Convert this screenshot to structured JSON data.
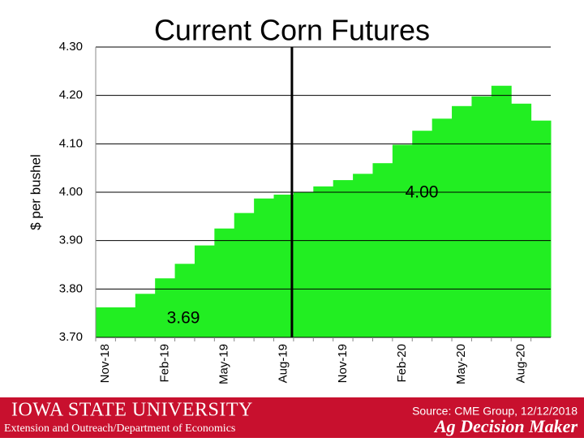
{
  "chart_data": {
    "type": "step-area",
    "title": "Current Corn Futures",
    "y_label": "$ per bushel",
    "categories": [
      "Nov-18",
      null,
      null,
      "Feb-19",
      null,
      null,
      "May-19",
      null,
      null,
      "Aug-19",
      null,
      null,
      "Nov-19",
      null,
      null,
      "Feb-20",
      null,
      null,
      "May-20",
      null,
      null,
      "Aug-20",
      null
    ],
    "values": [
      3.762,
      3.762,
      3.79,
      3.822,
      3.852,
      3.89,
      3.925,
      3.957,
      3.987,
      3.995,
      4.0,
      4.012,
      4.025,
      4.038,
      4.06,
      4.098,
      4.127,
      4.152,
      4.178,
      4.198,
      4.22,
      4.183,
      4.148
    ],
    "color": "#22ee22",
    "ylim": [
      3.7,
      4.3
    ],
    "yticks": [
      {
        "value": 3.7,
        "label": "3.70"
      },
      {
        "value": 3.8,
        "label": "3.80"
      },
      {
        "value": 3.9,
        "label": "3.90"
      },
      {
        "value": 4.0,
        "label": "4.00"
      },
      {
        "value": 4.1,
        "label": "4.10"
      },
      {
        "value": 4.2,
        "label": "4.20"
      },
      {
        "value": 4.3,
        "label": "4.30"
      }
    ],
    "grid": true,
    "annotations": [
      "4.00",
      "3.69"
    ]
  },
  "footer": {
    "university": "Iowa State University",
    "department": "Extension and Outreach/Department of Economics",
    "source": "Source: CME Group, 12/12/2018",
    "brand": "Ag Decision Maker"
  }
}
